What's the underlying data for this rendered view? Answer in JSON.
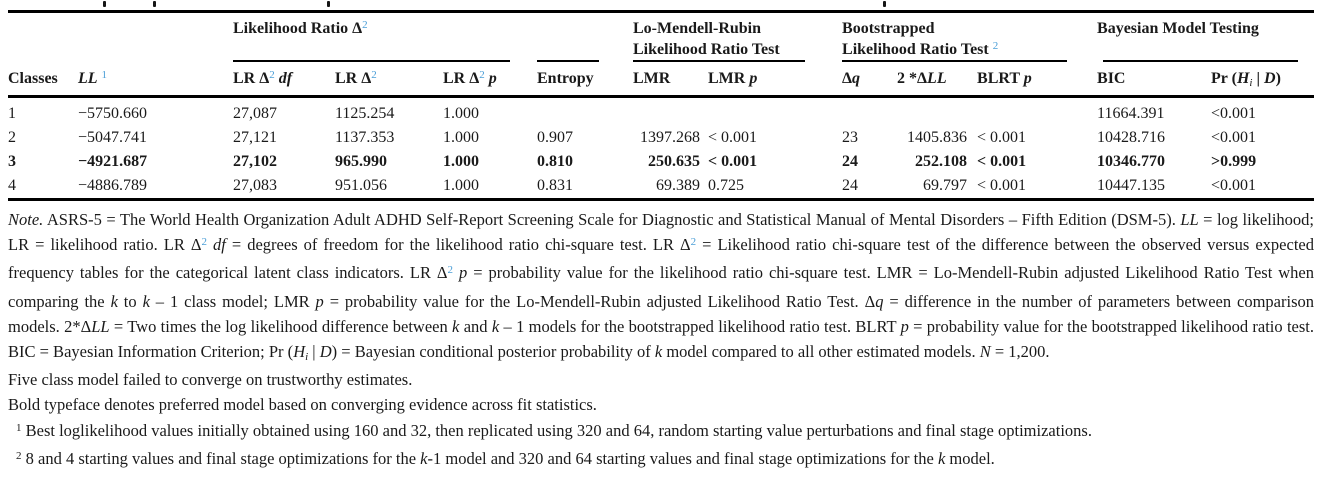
{
  "accent_color": "#4a9ed7",
  "text_color": "#1a1a1a",
  "rule_color": "#000000",
  "table": {
    "group_headers": [
      {
        "id": "likelihood_ratio_delta2",
        "line1": [
          {
            "t": "Likelihood Ratio Δ",
            "s": "b"
          },
          {
            "t": "2",
            "s": "sup"
          }
        ],
        "line2": []
      },
      {
        "id": "lo_mendell_rubin_lrt",
        "line1": [
          {
            "t": "Lo-Mendell-Rubin",
            "s": "b"
          }
        ],
        "line2": [
          {
            "t": "Likelihood Ratio Test",
            "s": "b"
          }
        ]
      },
      {
        "id": "bootstrapped_lrt",
        "line1": [
          {
            "t": "Bootstrapped",
            "s": "b"
          }
        ],
        "line2": [
          {
            "t": "Likelihood Ratio Test ",
            "s": "b"
          },
          {
            "t": "2",
            "s": "sup"
          }
        ]
      },
      {
        "id": "bayesian_model_testing",
        "line1": [
          {
            "t": "Bayesian Model Testing",
            "s": "b"
          }
        ],
        "line2": []
      }
    ],
    "columns": [
      {
        "id": "classes",
        "header_rich": [
          {
            "t": "Classes",
            "s": "b"
          }
        ]
      },
      {
        "id": "ll",
        "header_rich": [
          {
            "t": "LL",
            "s": "bi"
          },
          {
            "t": " "
          },
          {
            "t": "1",
            "s": "sup"
          }
        ]
      },
      {
        "id": "lr_delta2_df",
        "header_rich": [
          {
            "t": "LR Δ",
            "s": "b"
          },
          {
            "t": "2",
            "s": "sup"
          },
          {
            "t": " ",
            "s": "b"
          },
          {
            "t": "df",
            "s": "bi"
          }
        ]
      },
      {
        "id": "lr_delta2",
        "header_rich": [
          {
            "t": "LR Δ",
            "s": "b"
          },
          {
            "t": "2",
            "s": "sup"
          }
        ]
      },
      {
        "id": "lr_delta2_p",
        "header_rich": [
          {
            "t": "LR Δ",
            "s": "b"
          },
          {
            "t": "2",
            "s": "sup"
          },
          {
            "t": " ",
            "s": "b"
          },
          {
            "t": "p",
            "s": "bi"
          }
        ]
      },
      {
        "id": "entropy",
        "header_rich": [
          {
            "t": "Entropy",
            "s": "b"
          }
        ]
      },
      {
        "id": "lmr",
        "header_rich": [
          {
            "t": "LMR",
            "s": "b"
          }
        ]
      },
      {
        "id": "lmr_p",
        "header_rich": [
          {
            "t": "LMR ",
            "s": "b"
          },
          {
            "t": "p",
            "s": "bi"
          }
        ]
      },
      {
        "id": "delta_q",
        "header_rich": [
          {
            "t": "Δ",
            "s": "b"
          },
          {
            "t": "q",
            "s": "bi"
          }
        ]
      },
      {
        "id": "two_delta_ll",
        "header_rich": [
          {
            "t": "2 *Δ",
            "s": "b"
          },
          {
            "t": "LL",
            "s": "bi"
          }
        ]
      },
      {
        "id": "blrt_p",
        "header_rich": [
          {
            "t": "BLRT ",
            "s": "b"
          },
          {
            "t": "p",
            "s": "bi"
          }
        ]
      },
      {
        "id": "bic",
        "header_rich": [
          {
            "t": "BIC",
            "s": "b"
          }
        ]
      },
      {
        "id": "pr_hi_d",
        "header_rich": [
          {
            "t": "Pr (",
            "s": "b"
          },
          {
            "t": "H",
            "s": "bi"
          },
          {
            "t": "i",
            "s": "subi"
          },
          {
            "t": " | ",
            "s": "b"
          },
          {
            "t": "D",
            "s": "bi"
          },
          {
            "t": ")",
            "s": "b"
          }
        ]
      }
    ],
    "rows": [
      {
        "bold": false,
        "cells": [
          "1",
          "−5750.660",
          "27,087",
          "1125.254",
          "1.000",
          "",
          "",
          "",
          "",
          "",
          "",
          "11664.391",
          "<0.001"
        ]
      },
      {
        "bold": false,
        "cells": [
          "2",
          "−5047.741",
          "27,121",
          "1137.353",
          "1.000",
          "0.907",
          "1397.268",
          "< 0.001",
          "23",
          "1405.836",
          "< 0.001",
          "10428.716",
          "<0.001"
        ]
      },
      {
        "bold": true,
        "cells": [
          "3",
          "−4921.687",
          "27,102",
          "965.990",
          "1.000",
          "0.810",
          "250.635",
          "< 0.001",
          "24",
          "252.108",
          "< 0.001",
          "10346.770",
          ">0.999"
        ]
      },
      {
        "bold": false,
        "cells": [
          "4",
          "−4886.789",
          "27,083",
          "951.056",
          "1.000",
          "0.831",
          "69.389",
          "0.725",
          "24",
          "69.797",
          "< 0.001",
          "10447.135",
          "<0.001"
        ]
      }
    ]
  },
  "note": {
    "main_rich": [
      {
        "t": "Note.",
        "s": "i"
      },
      {
        "t": " ASRS-5 = The World Health Organization Adult ADHD Self-Report Screening Scale for Diagnostic and Statistical Manual of Mental Disorders – Fifth Edition (DSM-5). "
      },
      {
        "t": "LL",
        "s": "i"
      },
      {
        "t": " = log likelihood; LR = likelihood ratio. LR Δ"
      },
      {
        "t": "2",
        "s": "sup"
      },
      {
        "t": " "
      },
      {
        "t": "df",
        "s": "i"
      },
      {
        "t": " = degrees of freedom for the likelihood ratio chi-square test. LR Δ"
      },
      {
        "t": "2",
        "s": "sup"
      },
      {
        "t": " = Likelihood ratio chi-square test of the difference between the observed versus expected frequency tables for the categorical latent class indicators. LR Δ"
      },
      {
        "t": "2",
        "s": "sup"
      },
      {
        "t": " "
      },
      {
        "t": "p",
        "s": "i"
      },
      {
        "t": " = probability value for the likelihood ratio chi-square test. LMR = Lo-Mendell-Rubin adjusted Likelihood Ratio Test when comparing the "
      },
      {
        "t": "k",
        "s": "i"
      },
      {
        "t": " to "
      },
      {
        "t": "k",
        "s": "i"
      },
      {
        "t": " – 1 class model; LMR "
      },
      {
        "t": "p",
        "s": "i"
      },
      {
        "t": " = probability value for the Lo-Mendell-Rubin adjusted Likelihood Ratio Test. Δ"
      },
      {
        "t": "q",
        "s": "i"
      },
      {
        "t": " = difference in the number of parameters between comparison models. 2*Δ"
      },
      {
        "t": "LL",
        "s": "i"
      },
      {
        "t": " = Two times the log likelihood difference between "
      },
      {
        "t": "k",
        "s": "i"
      },
      {
        "t": " and "
      },
      {
        "t": "k",
        "s": "i"
      },
      {
        "t": " – 1 models for the bootstrapped likelihood ratio test. BLRT "
      },
      {
        "t": "p",
        "s": "i"
      },
      {
        "t": " = probability value for the bootstrapped likelihood ratio test. BIC = Bayesian Information Criterion; Pr ("
      },
      {
        "t": "H",
        "s": "i"
      },
      {
        "t": "i",
        "s": "subi"
      },
      {
        "t": " | "
      },
      {
        "t": "D",
        "s": "i"
      },
      {
        "t": ") = Bayesian conditional posterior probability of "
      },
      {
        "t": "k",
        "s": "i"
      },
      {
        "t": " model compared to all other estimated models. "
      },
      {
        "t": "N",
        "s": "i"
      },
      {
        "t": " = 1,200."
      }
    ],
    "line_converge": [
      {
        "t": "Five class model failed to converge on trustworthy estimates."
      }
    ],
    "line_bold_typeface": [
      {
        "t": "Bold typeface denotes preferred model based on converging evidence across fit statistics."
      }
    ],
    "footnote1_rich": [
      {
        "t": "1",
        "s": "supk"
      },
      {
        "t": " Best loglikelihood values initially obtained using 160 and 32, then replicated using 320 and 64, random starting value perturbations and final stage optimizations."
      }
    ],
    "footnote2_rich": [
      {
        "t": "2",
        "s": "supk"
      },
      {
        "t": " 8 and 4 starting values and final stage optimizations for the "
      },
      {
        "t": "k",
        "s": "i"
      },
      {
        "t": "-1 model and 320 and 64 starting values and final stage optimizations for the "
      },
      {
        "t": "k",
        "s": "i"
      },
      {
        "t": " model."
      }
    ]
  }
}
